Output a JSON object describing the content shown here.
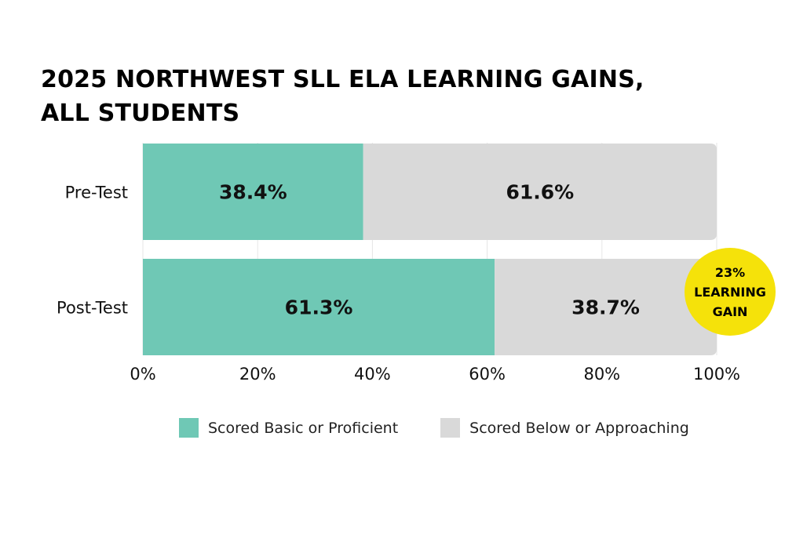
{
  "title_lines": [
    "2025 NORTHWEST SLL ELA LEARNING GAINS,",
    "ALL STUDENTS"
  ],
  "colors": {
    "proficient": "#6fc8b5",
    "below": "#d9d9d9",
    "badge": "#f5e20a",
    "grid": "#e6e6e6"
  },
  "badge": {
    "line1": "23%",
    "line2": "LEARNING",
    "line3": "GAIN"
  },
  "chart_data": {
    "type": "bar",
    "orientation": "horizontal",
    "stacked": true,
    "categories": [
      "Pre-Test",
      "Post-Test"
    ],
    "series": [
      {
        "name": "Scored Basic or Proficient",
        "values": [
          38.4,
          61.3
        ],
        "labels": [
          "38.4%",
          "61.3%"
        ]
      },
      {
        "name": "Scored Below or Approaching",
        "values": [
          61.6,
          38.7
        ],
        "labels": [
          "61.6%",
          "38.7%"
        ]
      }
    ],
    "xlim": [
      0,
      100
    ],
    "xticks": [
      "0%",
      "20%",
      "40%",
      "60%",
      "80%",
      "100%"
    ],
    "grid": true,
    "legend": "bottom"
  }
}
